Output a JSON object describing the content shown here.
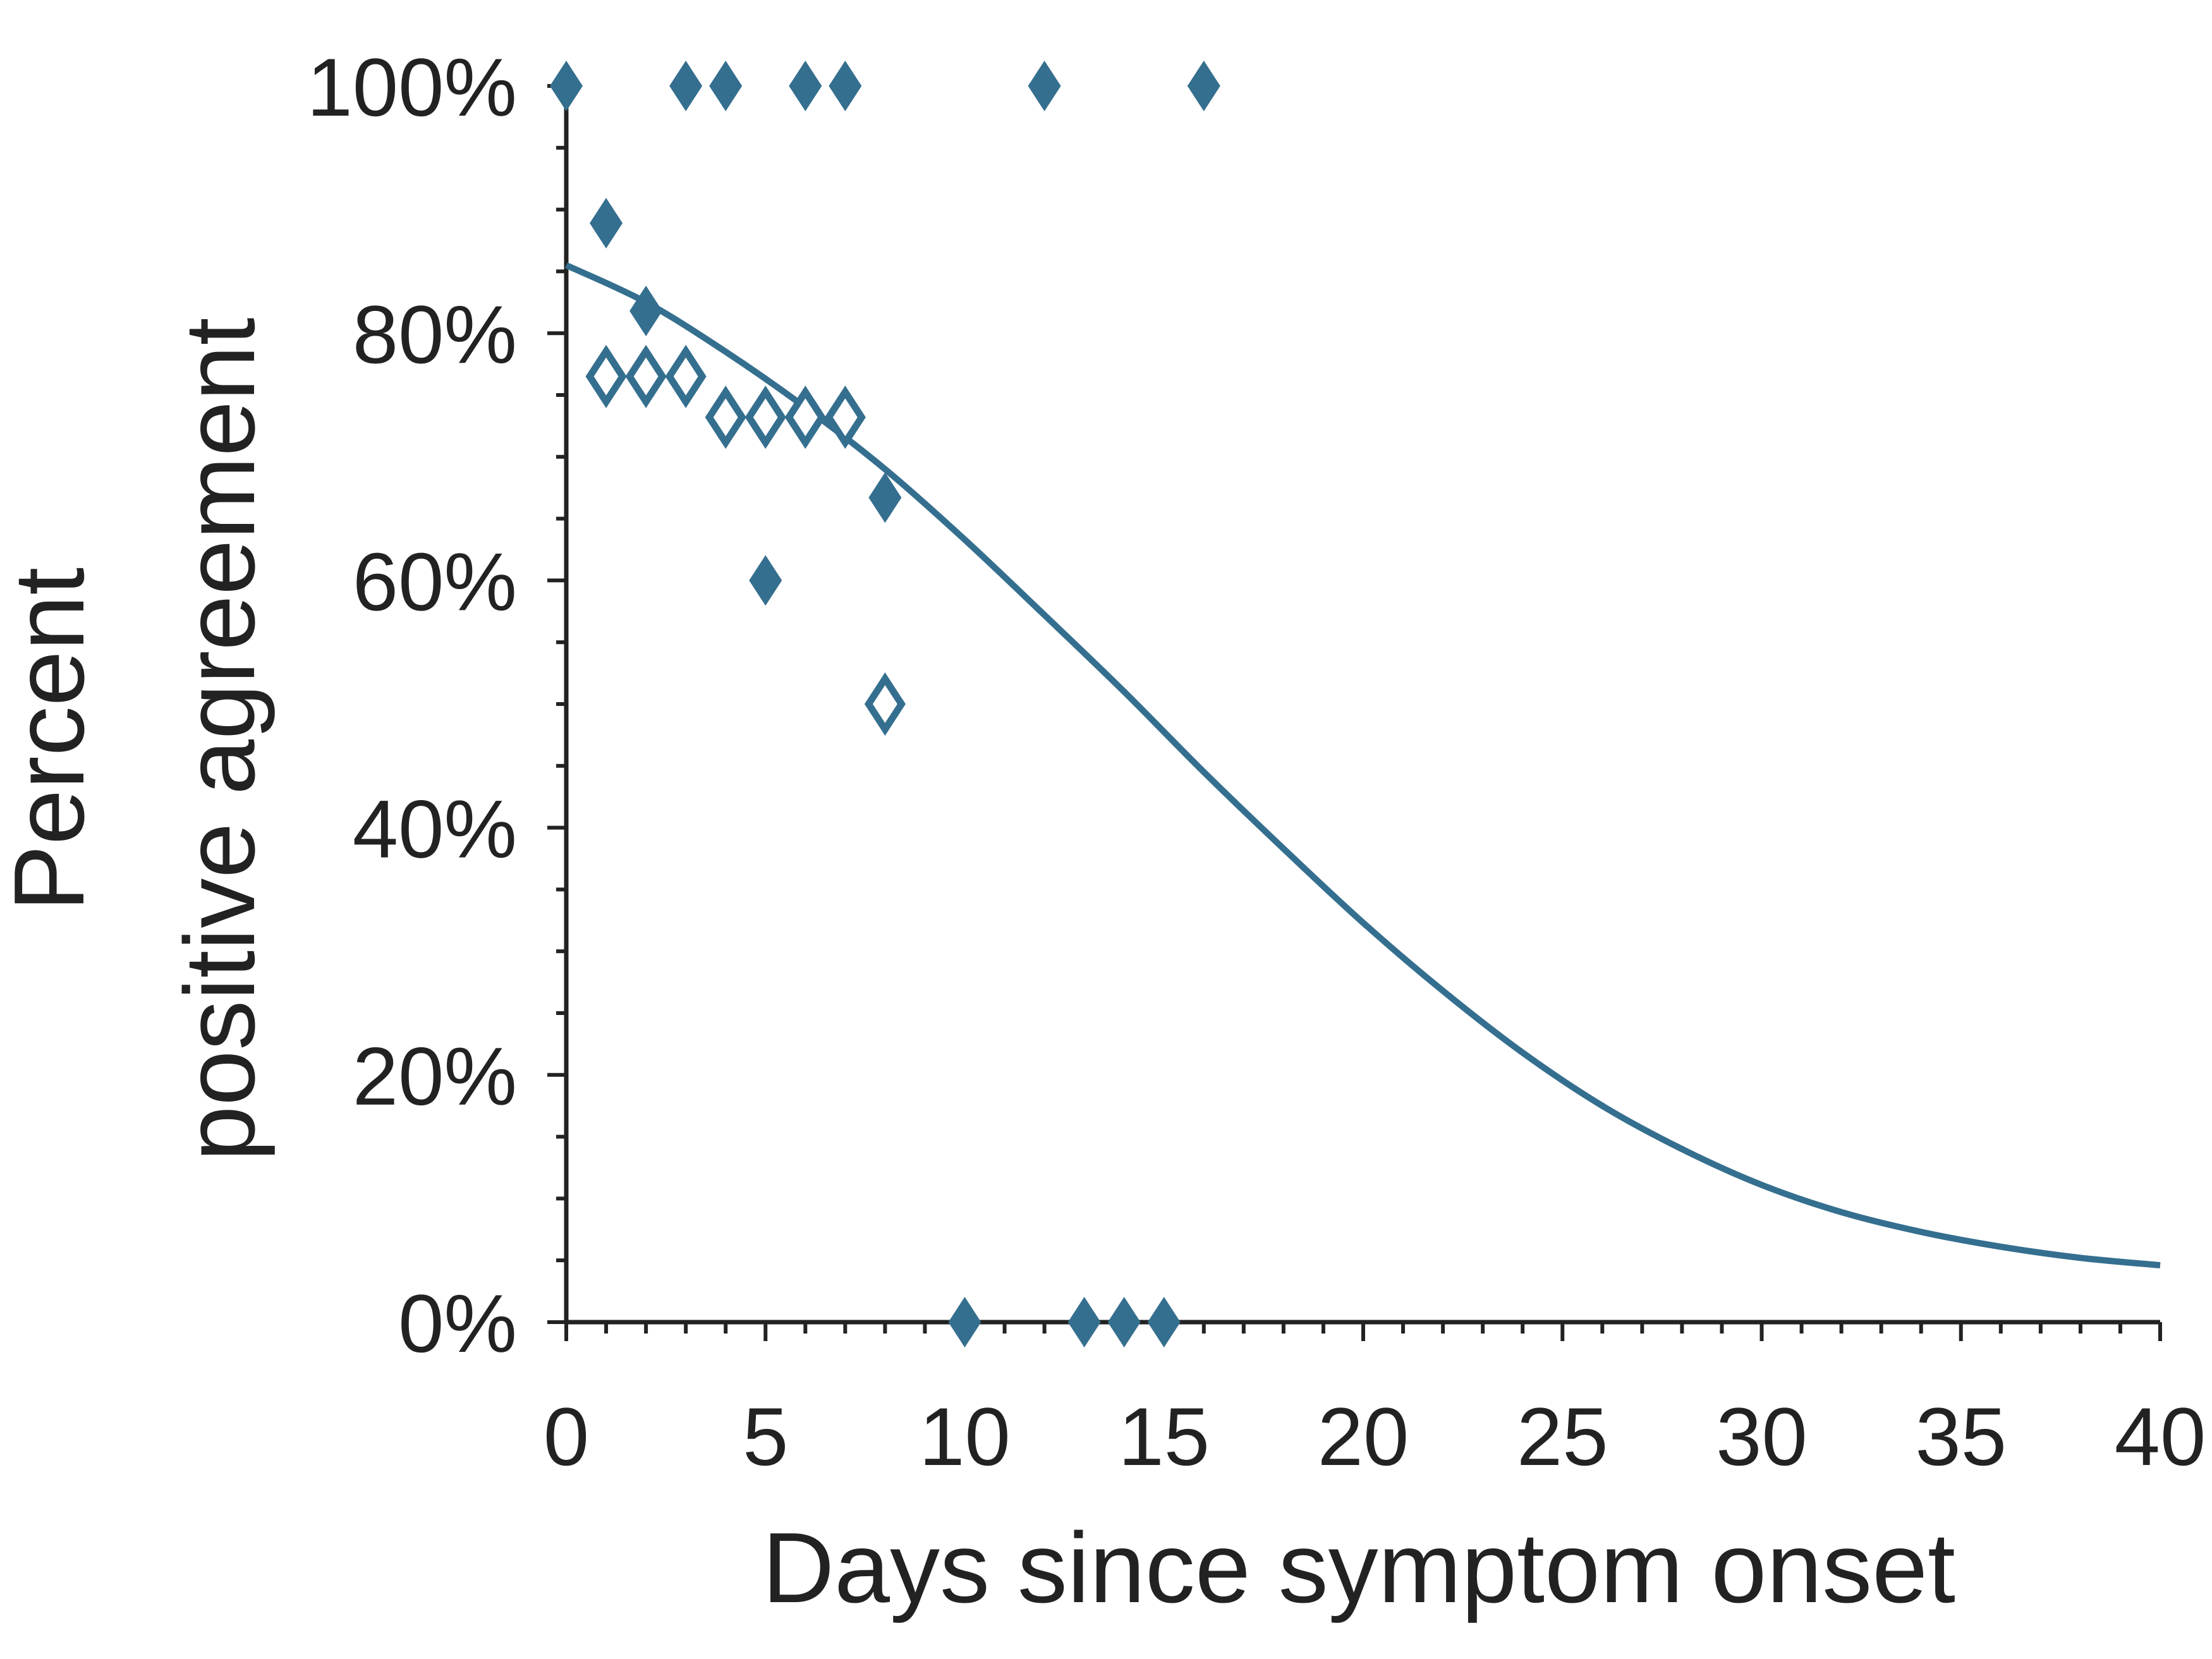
{
  "chart_data": {
    "type": "scatter",
    "title": "",
    "xlabel": "Days since symptom onset",
    "ylabel_lines": [
      "Percent",
      "positive agreement"
    ],
    "xlim": [
      0,
      40
    ],
    "ylim": [
      0,
      100
    ],
    "x_ticks": [
      {
        "value": 0,
        "label": "0"
      },
      {
        "value": 5,
        "label": "5"
      },
      {
        "value": 10,
        "label": "10"
      },
      {
        "value": 15,
        "label": "15"
      },
      {
        "value": 20,
        "label": "20"
      },
      {
        "value": 25,
        "label": "25"
      },
      {
        "value": 30,
        "label": "30"
      },
      {
        "value": 35,
        "label": "35"
      },
      {
        "value": 40,
        "label": "40"
      }
    ],
    "y_ticks": [
      {
        "value": 0,
        "label": "0%"
      },
      {
        "value": 20,
        "label": "20%"
      },
      {
        "value": 40,
        "label": "40%"
      },
      {
        "value": 60,
        "label": "60%"
      },
      {
        "value": 80,
        "label": "80%"
      },
      {
        "value": 100,
        "label": "100%"
      }
    ],
    "x_minor_step": 1,
    "y_minor_step": 5,
    "grid": false,
    "legend": "none",
    "color": "#356f8f",
    "series": [
      {
        "marker": "diamond-filled",
        "points": [
          {
            "x": 0,
            "y": 100
          },
          {
            "x": 1,
            "y": 88.9
          },
          {
            "x": 2,
            "y": 81.8
          },
          {
            "x": 3,
            "y": 100
          },
          {
            "x": 4,
            "y": 100
          },
          {
            "x": 5,
            "y": 60
          },
          {
            "x": 6,
            "y": 100
          },
          {
            "x": 7,
            "y": 100
          },
          {
            "x": 8,
            "y": 66.7
          },
          {
            "x": 10,
            "y": 0
          },
          {
            "x": 12,
            "y": 100
          },
          {
            "x": 13,
            "y": 0
          },
          {
            "x": 14,
            "y": 0
          },
          {
            "x": 15,
            "y": 0
          },
          {
            "x": 16,
            "y": 100
          }
        ]
      },
      {
        "marker": "diamond-open",
        "points": [
          {
            "x": 1,
            "y": 76.5
          },
          {
            "x": 2,
            "y": 76.5
          },
          {
            "x": 3,
            "y": 76.5
          },
          {
            "x": 4,
            "y": 73.2
          },
          {
            "x": 5,
            "y": 73.2
          },
          {
            "x": 6,
            "y": 73.2
          },
          {
            "x": 7,
            "y": 73.2
          },
          {
            "x": 8,
            "y": 50
          }
        ]
      }
    ],
    "fit_curve": {
      "type": "line",
      "points": [
        {
          "x": 0,
          "y": 85.5
        },
        {
          "x": 2,
          "y": 82.5
        },
        {
          "x": 4,
          "y": 78.5
        },
        {
          "x": 6,
          "y": 74
        },
        {
          "x": 8,
          "y": 69
        },
        {
          "x": 10,
          "y": 63.3
        },
        {
          "x": 12,
          "y": 57.2
        },
        {
          "x": 14,
          "y": 51
        },
        {
          "x": 16,
          "y": 44.5
        },
        {
          "x": 18,
          "y": 38.3
        },
        {
          "x": 20,
          "y": 32.3
        },
        {
          "x": 22,
          "y": 26.8
        },
        {
          "x": 24,
          "y": 21.8
        },
        {
          "x": 26,
          "y": 17.5
        },
        {
          "x": 28,
          "y": 14
        },
        {
          "x": 30,
          "y": 11.1
        },
        {
          "x": 32,
          "y": 8.9
        },
        {
          "x": 34,
          "y": 7.3
        },
        {
          "x": 36,
          "y": 6.1
        },
        {
          "x": 38,
          "y": 5.2
        },
        {
          "x": 40,
          "y": 4.6
        }
      ]
    }
  }
}
